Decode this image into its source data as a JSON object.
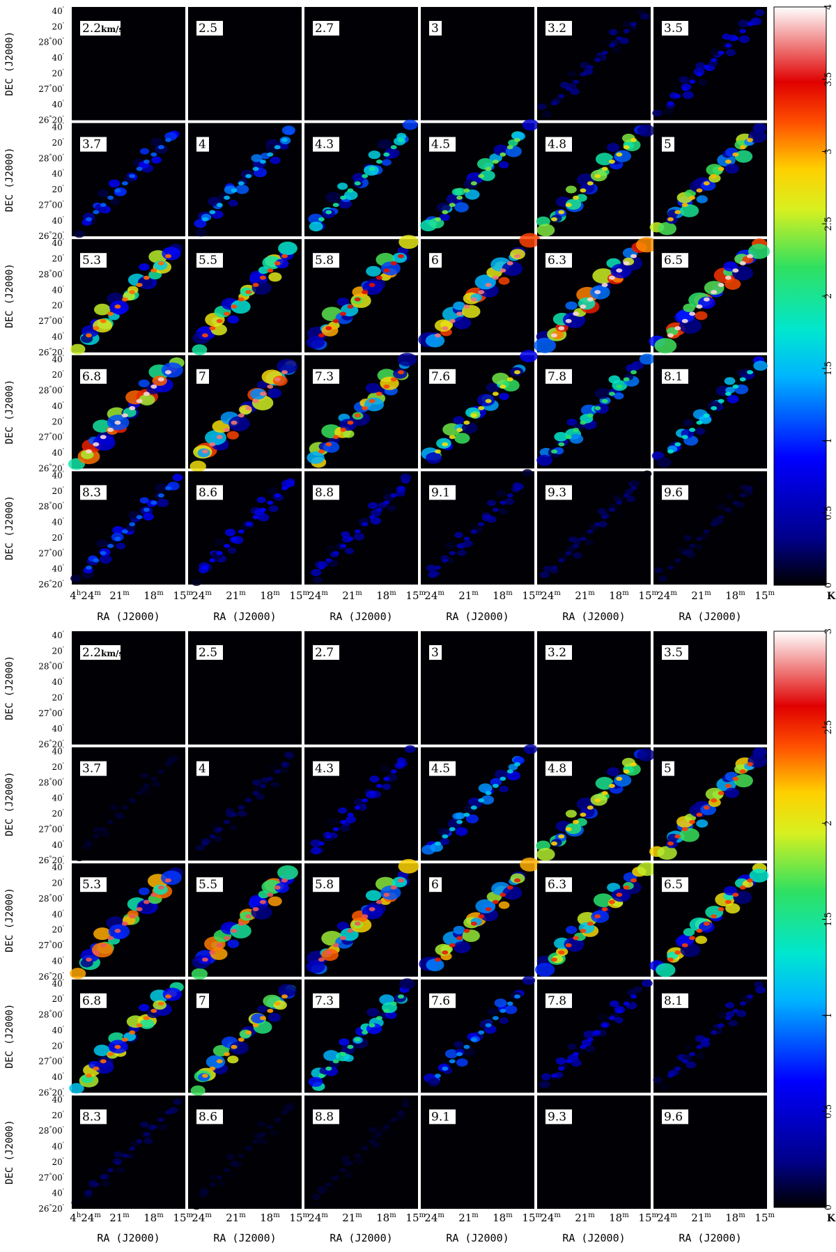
{
  "chart_data": [
    {
      "type": "heatmap",
      "panel_label_unit": "km/s",
      "channel_velocities": [
        "2.2",
        "2.5",
        "2.7",
        "3",
        "3.2",
        "3.5",
        "3.7",
        "4",
        "4.3",
        "4.5",
        "4.8",
        "5",
        "5.3",
        "5.5",
        "5.8",
        "6",
        "6.3",
        "6.5",
        "6.8",
        "7",
        "7.3",
        "7.6",
        "7.8",
        "8.1",
        "8.3",
        "8.6",
        "8.8",
        "9.1",
        "9.3",
        "9.6"
      ],
      "channel_peak_level": [
        0.05,
        0.05,
        0.05,
        0.1,
        0.4,
        0.8,
        1.2,
        1.5,
        2.0,
        2.4,
        2.8,
        3.0,
        3.2,
        3.3,
        3.5,
        3.8,
        4.0,
        4.0,
        4.0,
        3.8,
        3.3,
        2.8,
        2.2,
        1.8,
        1.2,
        0.9,
        0.7,
        0.5,
        0.3,
        0.2
      ],
      "xlabel": "RA (J2000)",
      "ylabel": "DEC (J2000)",
      "x_ticks": [
        "24",
        "21",
        "18",
        "15"
      ],
      "x_first_tick_prefix": "4",
      "x_hour_sup": "h",
      "x_min_sup": "m",
      "y_ticks": [
        "40",
        "20",
        "28°00",
        "40",
        "20",
        "27°00",
        "40",
        "26°20"
      ],
      "colorbar": {
        "min": 0,
        "max": 4,
        "ticks": [
          "0",
          "0.5",
          "1",
          "1.5",
          "2",
          "2.5",
          "3",
          "3.5",
          "4"
        ],
        "unit": "K"
      }
    },
    {
      "type": "heatmap",
      "panel_label_unit": "km/s",
      "channel_velocities": [
        "2.2",
        "2.5",
        "2.7",
        "3",
        "3.2",
        "3.5",
        "3.7",
        "4",
        "4.3",
        "4.5",
        "4.8",
        "5",
        "5.3",
        "5.5",
        "5.8",
        "6",
        "6.3",
        "6.5",
        "6.8",
        "7",
        "7.3",
        "7.6",
        "7.8",
        "8.1",
        "8.3",
        "8.6",
        "8.8",
        "9.1",
        "9.3",
        "9.6"
      ],
      "channel_peak_level": [
        0.02,
        0.02,
        0.02,
        0.02,
        0.02,
        0.02,
        0.1,
        0.2,
        0.6,
        1.2,
        2.2,
        2.5,
        2.8,
        2.8,
        2.8,
        2.6,
        2.5,
        2.5,
        2.4,
        2.3,
        1.6,
        1.0,
        0.6,
        0.4,
        0.2,
        0.1,
        0.1,
        0.05,
        0.05,
        0.05
      ],
      "xlabel": "RA (J2000)",
      "ylabel": "DEC (J2000)",
      "x_ticks": [
        "24",
        "21",
        "18",
        "15"
      ],
      "x_first_tick_prefix": "4",
      "x_hour_sup": "h",
      "x_min_sup": "m",
      "y_ticks": [
        "40",
        "20",
        "28°00",
        "40",
        "20",
        "27°00",
        "40",
        "26°20"
      ],
      "colorbar": {
        "min": 0,
        "max": 3,
        "ticks": [
          "0",
          "0.5",
          "1",
          "1.5",
          "2",
          "2.5",
          "3"
        ],
        "unit": "K"
      }
    }
  ]
}
